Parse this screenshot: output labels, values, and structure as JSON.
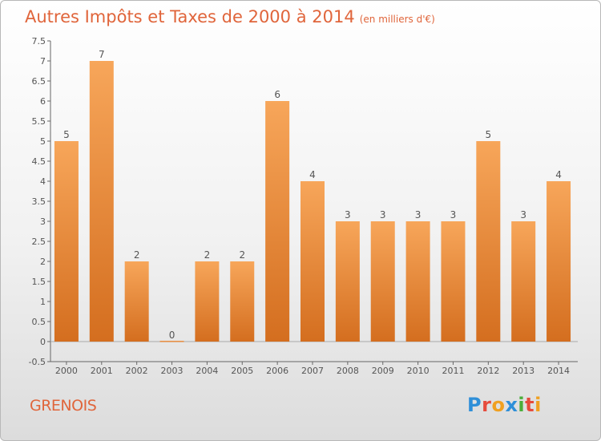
{
  "colors": {
    "title": "#e0653b",
    "bar_light": "#f7a65a",
    "bar_dark": "#d46e1f",
    "axis": "#666666",
    "grid": "#cfcfcf"
  },
  "header": {
    "title": "Autres Impôts et Taxes de 2000 à 2014",
    "subtitle": "(en milliers d'€)"
  },
  "footer": {
    "commune": "GRENOIS",
    "brand": [
      "P",
      "r",
      "o",
      "x",
      "i",
      "t",
      "i"
    ],
    "brand_colors": [
      "#2f8fd8",
      "#e64b3c",
      "#f0a020",
      "#2f8fd8",
      "#4aae3a",
      "#e64b3c",
      "#f0a020"
    ]
  },
  "chart_data": {
    "type": "bar",
    "title": "Autres Impôts et Taxes de 2000 à 2014",
    "subtitle": "(en milliers d'€)",
    "categories": [
      "2000",
      "2001",
      "2002",
      "2003",
      "2004",
      "2005",
      "2006",
      "2007",
      "2008",
      "2009",
      "2010",
      "2011",
      "2012",
      "2013",
      "2014"
    ],
    "values": [
      5,
      7,
      2,
      0,
      2,
      2,
      6,
      4,
      3,
      3,
      3,
      3,
      5,
      3,
      4
    ],
    "ylim": [
      -0.5,
      7.5
    ],
    "yticks": [
      "-0.5",
      "0",
      "0.5",
      "1",
      "1.5",
      "2",
      "2.5",
      "3",
      "3.5",
      "4",
      "4.5",
      "5",
      "5.5",
      "6",
      "6.5",
      "7",
      "7.5"
    ],
    "grid": false,
    "legend": "none"
  }
}
